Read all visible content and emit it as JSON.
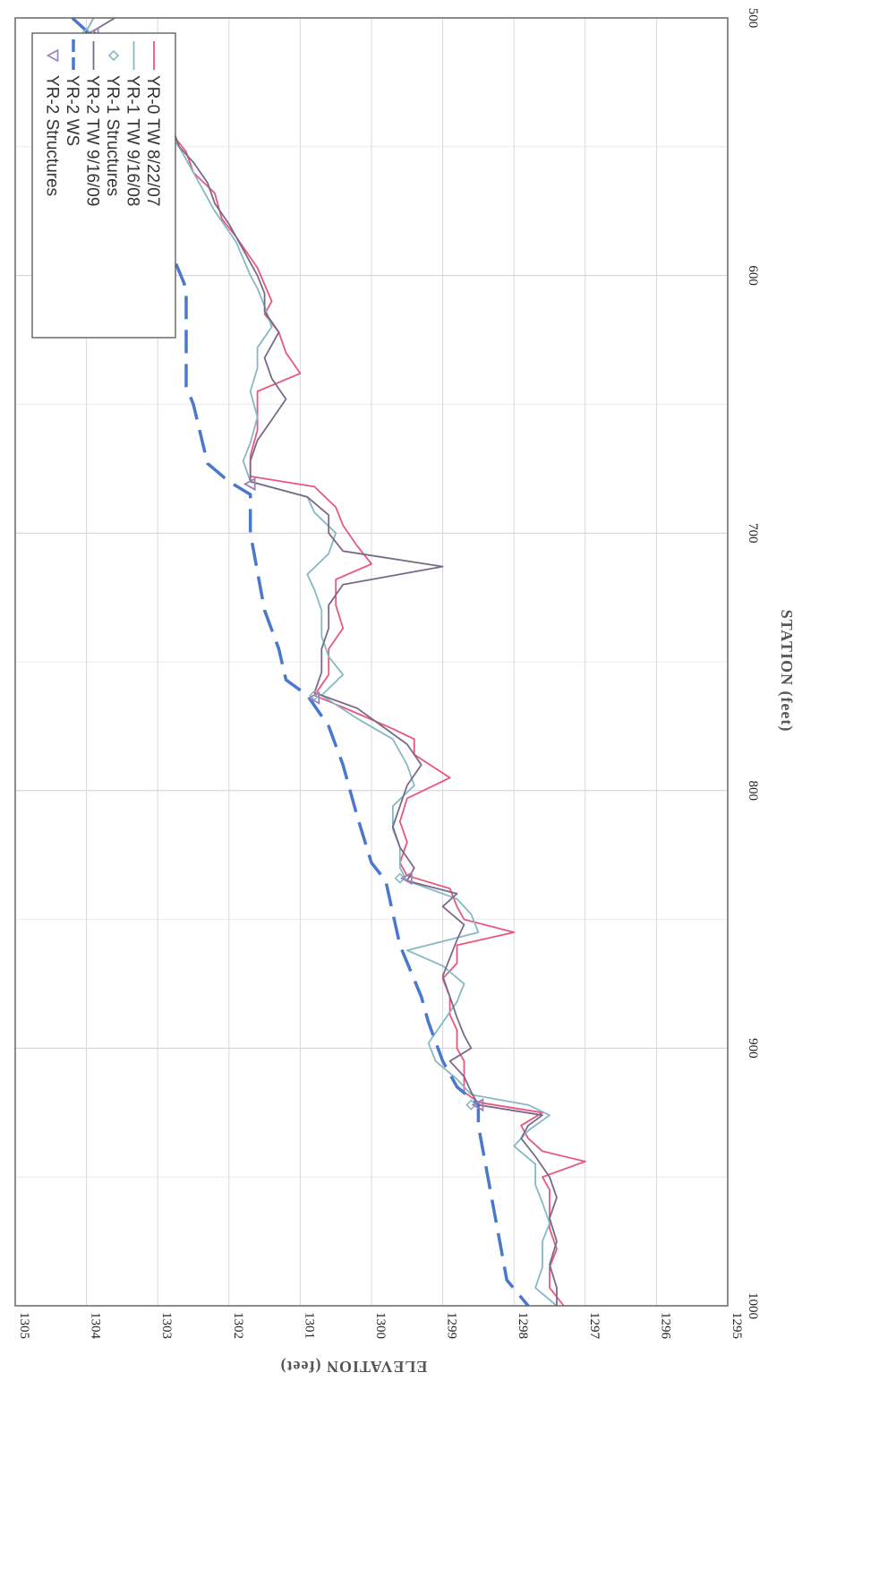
{
  "chart_data": {
    "type": "line",
    "title": "",
    "xlabel": "STATION (feet)",
    "ylabel": "ELEVATION (feet)",
    "xlim": [
      500,
      1000
    ],
    "ylim": [
      1295,
      1305
    ],
    "x_ticks": [
      "500",
      "600",
      "700",
      "800",
      "900",
      "1000"
    ],
    "y_ticks": [
      "1295",
      "1296",
      "1297",
      "1298",
      "1299",
      "1300",
      "1301",
      "1302",
      "1303",
      "1304",
      "1305"
    ],
    "x_tick_values": [
      500,
      600,
      700,
      800,
      900,
      1000
    ],
    "y_tick_values": [
      1295,
      1296,
      1297,
      1298,
      1299,
      1300,
      1301,
      1302,
      1303,
      1304,
      1305
    ],
    "grid": true,
    "legend_position": "top-left (rotated)",
    "orientation": "rotated 90 degrees clockwise",
    "legend": [
      {
        "label": "YR-0 TW 8/22/07",
        "color": "#e8577d",
        "style": "line"
      },
      {
        "label": "YR-1 TW 9/16/08",
        "color": "#86b9c4",
        "style": "line"
      },
      {
        "label": "YR-1 Structures",
        "color": "#86b9c4",
        "style": "diamond"
      },
      {
        "label": "YR-2 TW 9/16/09",
        "color": "#7a6a8a",
        "style": "line"
      },
      {
        "label": "YR-2  WS",
        "color": "#4a78cc",
        "style": "dash"
      },
      {
        "label": "YR-2 Structures",
        "color": "#9b80b8",
        "style": "triangle"
      }
    ],
    "series": [
      {
        "name": "YR-0 TW 8/22/07",
        "color": "#e8577d",
        "points": [
          [
            500,
            1303.9
          ],
          [
            505,
            1304.0
          ],
          [
            509,
            1303.8
          ],
          [
            511,
            1303.7
          ],
          [
            512,
            1303.4
          ],
          [
            520,
            1303.2
          ],
          [
            525,
            1303.2
          ],
          [
            532,
            1303.0
          ],
          [
            540,
            1302.9
          ],
          [
            545,
            1302.8
          ],
          [
            552,
            1302.6
          ],
          [
            560,
            1302.5
          ],
          [
            568,
            1302.2
          ],
          [
            578,
            1302.1
          ],
          [
            585,
            1301.9
          ],
          [
            597,
            1301.6
          ],
          [
            610,
            1301.4
          ],
          [
            615,
            1301.5
          ],
          [
            622,
            1301.3
          ],
          [
            630,
            1301.2
          ],
          [
            638,
            1301.0
          ],
          [
            645,
            1301.6
          ],
          [
            653,
            1301.6
          ],
          [
            660,
            1301.6
          ],
          [
            670,
            1301.7
          ],
          [
            678,
            1301.7
          ],
          [
            682,
            1300.8
          ],
          [
            690,
            1300.5
          ],
          [
            697,
            1300.4
          ],
          [
            705,
            1300.2
          ],
          [
            712,
            1300.0
          ],
          [
            718,
            1300.5
          ],
          [
            728,
            1300.5
          ],
          [
            737,
            1300.4
          ],
          [
            745,
            1300.6
          ],
          [
            755,
            1300.6
          ],
          [
            763,
            1300.8
          ],
          [
            770,
            1300.2
          ],
          [
            776,
            1299.7
          ],
          [
            780,
            1299.4
          ],
          [
            786,
            1299.4
          ],
          [
            795,
            1298.9
          ],
          [
            803,
            1299.5
          ],
          [
            812,
            1299.6
          ],
          [
            820,
            1299.5
          ],
          [
            828,
            1299.6
          ],
          [
            833,
            1299.5
          ],
          [
            838,
            1298.9
          ],
          [
            845,
            1298.8
          ],
          [
            850,
            1298.7
          ],
          [
            855,
            1298.0
          ],
          [
            860,
            1298.8
          ],
          [
            867,
            1298.8
          ],
          [
            873,
            1299.0
          ],
          [
            880,
            1298.9
          ],
          [
            887,
            1298.9
          ],
          [
            893,
            1298.8
          ],
          [
            900,
            1298.8
          ],
          [
            905,
            1298.7
          ],
          [
            911,
            1298.7
          ],
          [
            917,
            1298.7
          ],
          [
            921,
            1298.5
          ],
          [
            925,
            1297.6
          ],
          [
            930,
            1297.9
          ],
          [
            935,
            1297.8
          ],
          [
            940,
            1297.6
          ],
          [
            944,
            1297.0
          ],
          [
            950,
            1297.6
          ],
          [
            955,
            1297.5
          ],
          [
            962,
            1297.5
          ],
          [
            970,
            1297.5
          ],
          [
            978,
            1297.4
          ],
          [
            985,
            1297.5
          ],
          [
            993,
            1297.5
          ],
          [
            1000,
            1297.3
          ]
        ]
      },
      {
        "name": "YR-1 TW 9/16/08",
        "color": "#86b9c4",
        "points": [
          [
            500,
            1303.9
          ],
          [
            505,
            1304.0
          ],
          [
            509,
            1303.7
          ],
          [
            512,
            1303.6
          ],
          [
            515,
            1303.4
          ],
          [
            522,
            1303.4
          ],
          [
            530,
            1303.2
          ],
          [
            540,
            1303.0
          ],
          [
            550,
            1302.7
          ],
          [
            555,
            1302.6
          ],
          [
            565,
            1302.4
          ],
          [
            575,
            1302.2
          ],
          [
            587,
            1301.9
          ],
          [
            600,
            1301.7
          ],
          [
            605,
            1301.6
          ],
          [
            612,
            1301.5
          ],
          [
            620,
            1301.4
          ],
          [
            628,
            1301.6
          ],
          [
            636,
            1301.6
          ],
          [
            645,
            1301.7
          ],
          [
            655,
            1301.6
          ],
          [
            665,
            1301.7
          ],
          [
            672,
            1301.8
          ],
          [
            680,
            1301.7
          ],
          [
            686,
            1300.9
          ],
          [
            692,
            1300.8
          ],
          [
            700,
            1300.5
          ],
          [
            708,
            1300.6
          ],
          [
            716,
            1300.9
          ],
          [
            722,
            1300.8
          ],
          [
            730,
            1300.7
          ],
          [
            740,
            1300.7
          ],
          [
            748,
            1300.6
          ],
          [
            755,
            1300.4
          ],
          [
            763,
            1300.7
          ],
          [
            772,
            1300.2
          ],
          [
            780,
            1299.7
          ],
          [
            790,
            1299.5
          ],
          [
            798,
            1299.4
          ],
          [
            806,
            1299.7
          ],
          [
            815,
            1299.7
          ],
          [
            822,
            1299.6
          ],
          [
            830,
            1299.6
          ],
          [
            835,
            1299.5
          ],
          [
            842,
            1298.8
          ],
          [
            848,
            1298.6
          ],
          [
            855,
            1298.5
          ],
          [
            862,
            1299.5
          ],
          [
            868,
            1299.0
          ],
          [
            875,
            1298.7
          ],
          [
            882,
            1298.8
          ],
          [
            890,
            1299.0
          ],
          [
            898,
            1299.2
          ],
          [
            905,
            1299.1
          ],
          [
            912,
            1298.8
          ],
          [
            918,
            1298.6
          ],
          [
            922,
            1297.8
          ],
          [
            926,
            1297.5
          ],
          [
            932,
            1297.8
          ],
          [
            938,
            1298.0
          ],
          [
            945,
            1297.7
          ],
          [
            953,
            1297.7
          ],
          [
            960,
            1297.6
          ],
          [
            968,
            1297.5
          ],
          [
            975,
            1297.6
          ],
          [
            985,
            1297.6
          ],
          [
            993,
            1297.7
          ],
          [
            1000,
            1297.4
          ]
        ]
      },
      {
        "name": "YR-2 TW 9/16/09",
        "color": "#7a6a8a",
        "points": [
          [
            500,
            1303.6
          ],
          [
            505,
            1303.9
          ],
          [
            509,
            1303.8
          ],
          [
            511,
            1303.5
          ],
          [
            513,
            1303.2
          ],
          [
            520,
            1303.3
          ],
          [
            527,
            1303.3
          ],
          [
            535,
            1303.0
          ],
          [
            542,
            1302.8
          ],
          [
            550,
            1302.7
          ],
          [
            556,
            1302.5
          ],
          [
            564,
            1302.3
          ],
          [
            572,
            1302.2
          ],
          [
            580,
            1302.0
          ],
          [
            590,
            1301.8
          ],
          [
            600,
            1301.6
          ],
          [
            607,
            1301.5
          ],
          [
            614,
            1301.5
          ],
          [
            622,
            1301.3
          ],
          [
            632,
            1301.5
          ],
          [
            640,
            1301.4
          ],
          [
            648,
            1301.2
          ],
          [
            656,
            1301.4
          ],
          [
            664,
            1301.6
          ],
          [
            672,
            1301.7
          ],
          [
            680,
            1301.7
          ],
          [
            686,
            1300.9
          ],
          [
            693,
            1300.6
          ],
          [
            700,
            1300.6
          ],
          [
            707,
            1300.4
          ],
          [
            713,
            1299.0
          ],
          [
            720,
            1300.4
          ],
          [
            728,
            1300.6
          ],
          [
            737,
            1300.6
          ],
          [
            745,
            1300.7
          ],
          [
            754,
            1300.7
          ],
          [
            762,
            1300.8
          ],
          [
            768,
            1300.2
          ],
          [
            774,
            1299.9
          ],
          [
            782,
            1299.5
          ],
          [
            790,
            1299.3
          ],
          [
            798,
            1299.5
          ],
          [
            806,
            1299.6
          ],
          [
            814,
            1299.7
          ],
          [
            822,
            1299.6
          ],
          [
            830,
            1299.4
          ],
          [
            835,
            1299.5
          ],
          [
            840,
            1298.8
          ],
          [
            845,
            1299.0
          ],
          [
            852,
            1298.7
          ],
          [
            858,
            1298.8
          ],
          [
            865,
            1298.9
          ],
          [
            872,
            1299.0
          ],
          [
            880,
            1298.9
          ],
          [
            888,
            1298.8
          ],
          [
            895,
            1298.7
          ],
          [
            900,
            1298.6
          ],
          [
            905,
            1298.9
          ],
          [
            911,
            1298.7
          ],
          [
            917,
            1298.6
          ],
          [
            922,
            1298.5
          ],
          [
            926,
            1297.6
          ],
          [
            930,
            1297.8
          ],
          [
            935,
            1297.9
          ],
          [
            942,
            1297.7
          ],
          [
            950,
            1297.5
          ],
          [
            958,
            1297.4
          ],
          [
            966,
            1297.5
          ],
          [
            975,
            1297.4
          ],
          [
            984,
            1297.5
          ],
          [
            993,
            1297.4
          ],
          [
            1000,
            1297.4
          ]
        ]
      },
      {
        "name": "YR-2  WS",
        "color": "#4a78cc",
        "points": [
          [
            500,
            1304.2
          ],
          [
            505,
            1304.0
          ],
          [
            520,
            1304.0
          ],
          [
            535,
            1303.8
          ],
          [
            560,
            1303.4
          ],
          [
            585,
            1302.9
          ],
          [
            605,
            1302.6
          ],
          [
            610,
            1302.6
          ],
          [
            615,
            1302.6
          ],
          [
            643,
            1302.6
          ],
          [
            650,
            1302.5
          ],
          [
            673,
            1302.3
          ],
          [
            680,
            1302.0
          ],
          [
            685,
            1301.7
          ],
          [
            700,
            1301.7
          ],
          [
            715,
            1301.6
          ],
          [
            730,
            1301.5
          ],
          [
            745,
            1301.3
          ],
          [
            757,
            1301.2
          ],
          [
            763,
            1300.9
          ],
          [
            775,
            1300.6
          ],
          [
            790,
            1300.4
          ],
          [
            810,
            1300.2
          ],
          [
            828,
            1300.0
          ],
          [
            835,
            1299.8
          ],
          [
            860,
            1299.6
          ],
          [
            880,
            1299.3
          ],
          [
            890,
            1299.2
          ],
          [
            905,
            1299.0
          ],
          [
            915,
            1298.8
          ],
          [
            922,
            1298.5
          ],
          [
            930,
            1298.5
          ],
          [
            945,
            1298.4
          ],
          [
            960,
            1298.3
          ],
          [
            975,
            1298.2
          ],
          [
            990,
            1298.1
          ],
          [
            1000,
            1297.8
          ]
        ]
      },
      {
        "name": "YR-1 Structures",
        "color": "#86b9c4",
        "points": [
          [
            506,
            1304.0
          ],
          [
            763,
            1300.8
          ],
          [
            834,
            1299.6
          ],
          [
            922,
            1298.6
          ]
        ]
      },
      {
        "name": "YR-2 Structures",
        "color": "#9b80b8",
        "points": [
          [
            506,
            1303.9
          ],
          [
            681,
            1301.7
          ],
          [
            764,
            1300.8
          ],
          [
            834,
            1299.5
          ],
          [
            922,
            1298.5
          ]
        ]
      }
    ]
  }
}
